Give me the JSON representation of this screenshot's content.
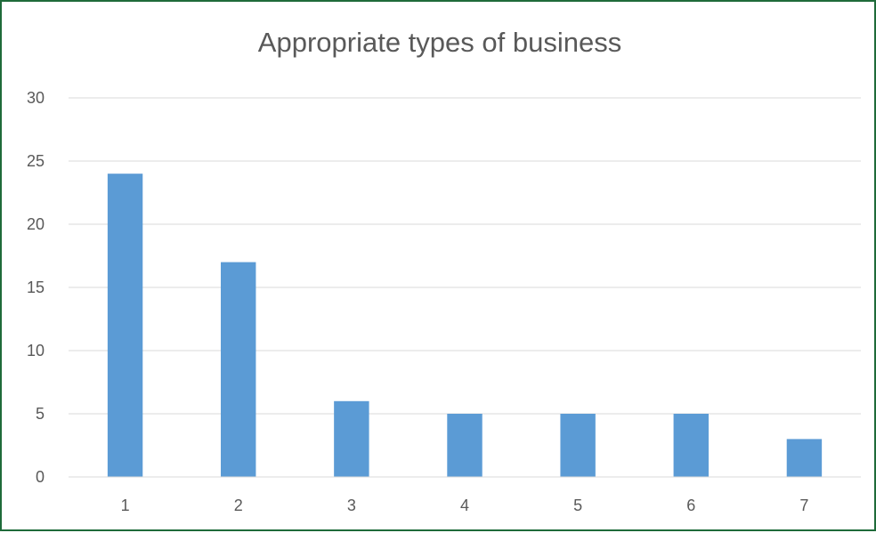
{
  "chart_data": {
    "type": "bar",
    "title": "Appropriate types of business",
    "categories": [
      "1",
      "2",
      "3",
      "4",
      "5",
      "6",
      "7"
    ],
    "values": [
      24,
      17,
      6,
      5,
      5,
      5,
      3
    ],
    "xlabel": "",
    "ylabel": "",
    "ylim": [
      0,
      30
    ],
    "yticks": [
      "0",
      "5",
      "10",
      "15",
      "20",
      "25",
      "30"
    ],
    "grid": true,
    "legend": "none",
    "bar_color": "#5b9bd5",
    "grid_color": "#d9d9d9",
    "text_color": "#595959",
    "border_color": "#1f6b3a"
  }
}
